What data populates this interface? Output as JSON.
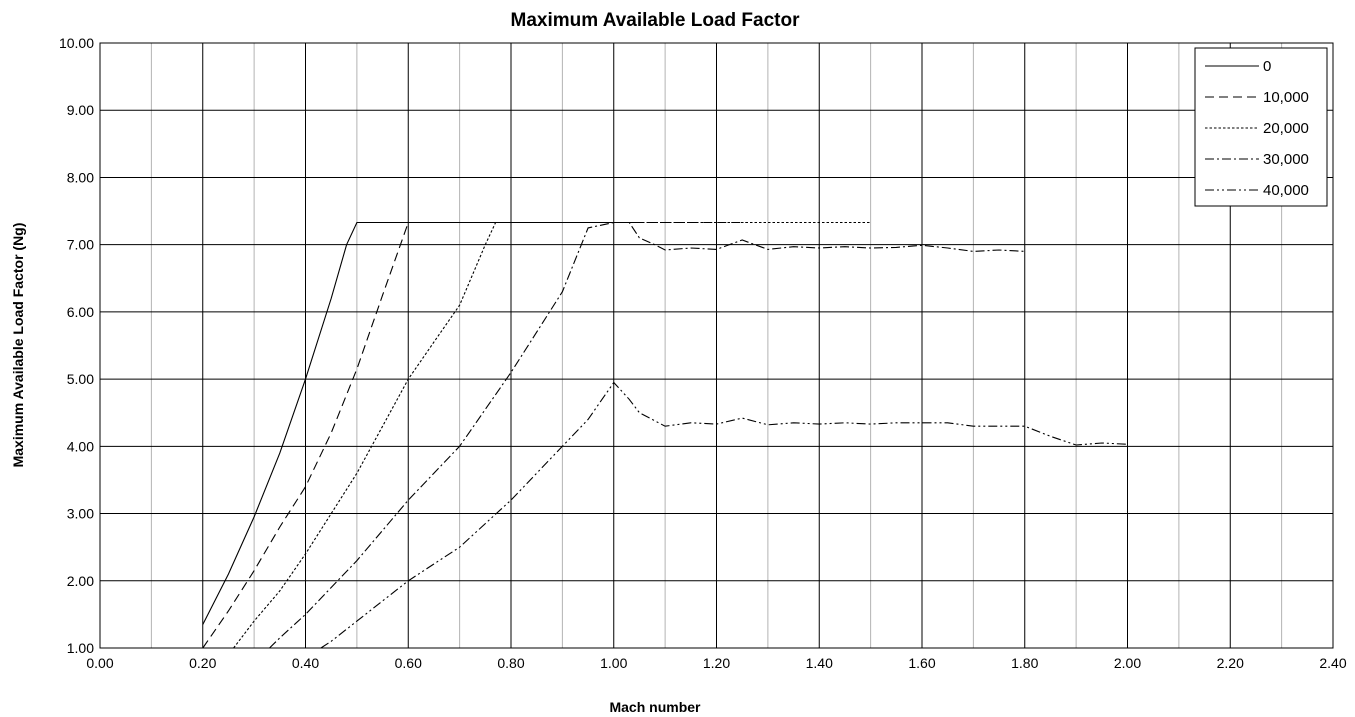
{
  "chart_data": {
    "type": "line",
    "title": "Maximum Available Load Factor",
    "xlabel": "Mach number",
    "ylabel": "Maximum Available Load Factor (Ng)",
    "xlim": [
      0,
      2.4
    ],
    "ylim": [
      1,
      10
    ],
    "x_ticks": [
      "0.00",
      "0.20",
      "0.40",
      "0.60",
      "0.80",
      "1.00",
      "1.20",
      "1.40",
      "1.60",
      "1.80",
      "2.00",
      "2.20",
      "2.40"
    ],
    "y_ticks": [
      "1.00",
      "2.00",
      "3.00",
      "4.00",
      "5.00",
      "6.00",
      "7.00",
      "8.00",
      "9.00",
      "10.00"
    ],
    "grid": true,
    "legend_position": "top-right",
    "series": [
      {
        "name": "0",
        "style": "solid",
        "x": [
          0.2,
          0.25,
          0.3,
          0.35,
          0.4,
          0.45,
          0.48,
          0.5,
          0.6,
          0.8,
          1.0,
          1.05
        ],
        "y": [
          1.35,
          2.1,
          2.95,
          3.9,
          5.0,
          6.2,
          7.0,
          7.33,
          7.33,
          7.33,
          7.33,
          7.33
        ]
      },
      {
        "name": "10,000",
        "style": "dash",
        "x": [
          0.2,
          0.25,
          0.3,
          0.35,
          0.4,
          0.45,
          0.5,
          0.55,
          0.6,
          0.8,
          1.0,
          1.26
        ],
        "y": [
          1.0,
          1.55,
          2.15,
          2.8,
          3.4,
          4.2,
          5.15,
          6.25,
          7.33,
          7.33,
          7.33,
          7.33
        ]
      },
      {
        "name": "20,000",
        "style": "dot",
        "x": [
          0.26,
          0.3,
          0.35,
          0.4,
          0.45,
          0.5,
          0.55,
          0.6,
          0.65,
          0.7,
          0.75,
          0.77,
          0.8,
          1.0,
          1.2,
          1.5
        ],
        "y": [
          1.0,
          1.4,
          1.85,
          2.4,
          3.0,
          3.6,
          4.3,
          5.0,
          5.55,
          6.1,
          7.0,
          7.33,
          7.33,
          7.33,
          7.33,
          7.33
        ]
      },
      {
        "name": "30,000",
        "style": "dashdot",
        "x": [
          0.33,
          0.35,
          0.4,
          0.45,
          0.5,
          0.55,
          0.6,
          0.65,
          0.7,
          0.75,
          0.8,
          0.85,
          0.9,
          0.95,
          1.0,
          1.03,
          1.05,
          1.08,
          1.1,
          1.15,
          1.2,
          1.25,
          1.3,
          1.35,
          1.4,
          1.45,
          1.5,
          1.55,
          1.6,
          1.65,
          1.7,
          1.75,
          1.8
        ],
        "y": [
          1.0,
          1.15,
          1.5,
          1.9,
          2.3,
          2.75,
          3.2,
          3.6,
          4.0,
          4.55,
          5.1,
          5.7,
          6.3,
          7.25,
          7.33,
          7.33,
          7.1,
          7.0,
          6.92,
          6.95,
          6.93,
          7.07,
          6.93,
          6.97,
          6.95,
          6.97,
          6.95,
          6.96,
          6.99,
          6.95,
          6.9,
          6.92,
          6.9
        ]
      },
      {
        "name": "40,000",
        "style": "dashdotdot",
        "x": [
          0.43,
          0.45,
          0.5,
          0.55,
          0.6,
          0.65,
          0.7,
          0.75,
          0.8,
          0.85,
          0.9,
          0.95,
          1.0,
          1.03,
          1.05,
          1.1,
          1.15,
          1.2,
          1.25,
          1.3,
          1.35,
          1.4,
          1.45,
          1.5,
          1.55,
          1.6,
          1.65,
          1.7,
          1.75,
          1.8,
          1.85,
          1.9,
          1.95,
          2.0
        ],
        "y": [
          1.0,
          1.1,
          1.4,
          1.7,
          2.0,
          2.25,
          2.5,
          2.85,
          3.2,
          3.6,
          4.0,
          4.4,
          4.95,
          4.7,
          4.5,
          4.3,
          4.35,
          4.33,
          4.42,
          4.32,
          4.35,
          4.33,
          4.35,
          4.33,
          4.35,
          4.35,
          4.35,
          4.3,
          4.3,
          4.3,
          4.15,
          4.02,
          4.05,
          4.03
        ]
      }
    ]
  }
}
